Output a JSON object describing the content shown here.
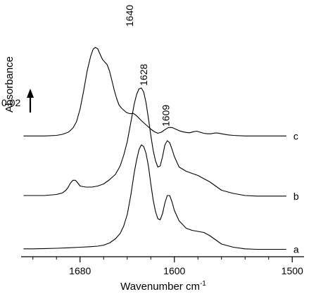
{
  "chart_data": {
    "type": "line",
    "title": "",
    "xlabel": "Wavenumber cm",
    "xlabel_superscript": "-1",
    "ylabel": "Absorbance",
    "xlim": [
      1730,
      1490
    ],
    "x_reversed": true,
    "x_ticks": [
      {
        "value": 1680,
        "label": "1680"
      },
      {
        "value": 1600,
        "label": "1600"
      },
      {
        "value": 1500,
        "label": "1500"
      }
    ],
    "x_minor_ticks": [
      1720,
      1700,
      1660,
      1640,
      1620,
      1580,
      1560,
      1540,
      1520
    ],
    "ylim": [
      0,
      0.24
    ],
    "y_axis_shown": false,
    "grid": false,
    "scale_bar": {
      "label": "0.02",
      "value": 0.02,
      "direction": "up"
    },
    "peak_labels": [
      {
        "x": 1640,
        "label": "1640"
      },
      {
        "x": 1628,
        "label": "1628"
      },
      {
        "x": 1609,
        "label": "1609"
      }
    ],
    "series": [
      {
        "name": "a",
        "points": [
          [
            1728,
            0.0075
          ],
          [
            1720,
            0.0075
          ],
          [
            1710,
            0.0077
          ],
          [
            1700,
            0.008
          ],
          [
            1690,
            0.0085
          ],
          [
            1680,
            0.009
          ],
          [
            1672,
            0.0095
          ],
          [
            1665,
            0.01
          ],
          [
            1660,
            0.011
          ],
          [
            1655,
            0.013
          ],
          [
            1650,
            0.017
          ],
          [
            1646,
            0.022
          ],
          [
            1643,
            0.029
          ],
          [
            1640,
            0.04
          ],
          [
            1637,
            0.058
          ],
          [
            1634,
            0.08
          ],
          [
            1632,
            0.092
          ],
          [
            1630,
            0.1015
          ],
          [
            1628,
            0.106
          ],
          [
            1626,
            0.1045
          ],
          [
            1624,
            0.098
          ],
          [
            1622,
            0.086
          ],
          [
            1620,
            0.069
          ],
          [
            1618,
            0.054
          ],
          [
            1616,
            0.043
          ],
          [
            1614,
            0.036
          ],
          [
            1612,
            0.035
          ],
          [
            1610,
            0.041
          ],
          [
            1608,
            0.051
          ],
          [
            1606,
            0.058
          ],
          [
            1604,
            0.058
          ],
          [
            1602,
            0.052
          ],
          [
            1600,
            0.044
          ],
          [
            1596,
            0.034
          ],
          [
            1590,
            0.027
          ],
          [
            1585,
            0.025
          ],
          [
            1580,
            0.024
          ],
          [
            1575,
            0.023
          ],
          [
            1570,
            0.02
          ],
          [
            1565,
            0.016
          ],
          [
            1560,
            0.012
          ],
          [
            1550,
            0.009
          ],
          [
            1540,
            0.0075
          ],
          [
            1530,
            0.007
          ],
          [
            1520,
            0.007
          ],
          [
            1510,
            0.007
          ],
          [
            1505,
            0.007
          ]
        ]
      },
      {
        "name": "b",
        "points": [
          [
            1728,
            0.058
          ],
          [
            1720,
            0.058
          ],
          [
            1710,
            0.058
          ],
          [
            1700,
            0.059
          ],
          [
            1695,
            0.0605
          ],
          [
            1692,
            0.063
          ],
          [
            1690,
            0.066
          ],
          [
            1688,
            0.07
          ],
          [
            1686,
            0.0725
          ],
          [
            1684,
            0.0725
          ],
          [
            1682,
            0.07
          ],
          [
            1680,
            0.067
          ],
          [
            1675,
            0.066
          ],
          [
            1670,
            0.066
          ],
          [
            1665,
            0.067
          ],
          [
            1660,
            0.069
          ],
          [
            1655,
            0.073
          ],
          [
            1650,
            0.078
          ],
          [
            1646,
            0.086
          ],
          [
            1643,
            0.096
          ],
          [
            1640,
            0.109
          ],
          [
            1637,
            0.127
          ],
          [
            1634,
            0.145
          ],
          [
            1632,
            0.154
          ],
          [
            1630,
            0.159
          ],
          [
            1628,
            0.16
          ],
          [
            1626,
            0.156
          ],
          [
            1624,
            0.146
          ],
          [
            1622,
            0.131
          ],
          [
            1620,
            0.115
          ],
          [
            1618,
            0.101
          ],
          [
            1616,
            0.091
          ],
          [
            1614,
            0.085
          ],
          [
            1612,
            0.086
          ],
          [
            1610,
            0.095
          ],
          [
            1608,
            0.106
          ],
          [
            1606,
            0.11
          ],
          [
            1604,
            0.108
          ],
          [
            1602,
            0.102
          ],
          [
            1600,
            0.095
          ],
          [
            1596,
            0.085
          ],
          [
            1590,
            0.081
          ],
          [
            1585,
            0.079
          ],
          [
            1580,
            0.077
          ],
          [
            1575,
            0.074
          ],
          [
            1570,
            0.071
          ],
          [
            1565,
            0.067
          ],
          [
            1560,
            0.063
          ],
          [
            1550,
            0.06
          ],
          [
            1540,
            0.058
          ],
          [
            1530,
            0.0575
          ],
          [
            1520,
            0.0575
          ],
          [
            1510,
            0.0575
          ],
          [
            1505,
            0.0575
          ]
        ]
      },
      {
        "name": "c",
        "points": [
          [
            1728,
            0.1145
          ],
          [
            1720,
            0.1145
          ],
          [
            1710,
            0.1145
          ],
          [
            1700,
            0.115
          ],
          [
            1695,
            0.116
          ],
          [
            1690,
            0.118
          ],
          [
            1686,
            0.122
          ],
          [
            1683,
            0.128
          ],
          [
            1680,
            0.14
          ],
          [
            1677,
            0.157
          ],
          [
            1674,
            0.176
          ],
          [
            1671,
            0.19
          ],
          [
            1669,
            0.1965
          ],
          [
            1667,
            0.1985
          ],
          [
            1665,
            0.197
          ],
          [
            1663,
            0.192
          ],
          [
            1661,
            0.187
          ],
          [
            1659,
            0.1845
          ],
          [
            1657,
            0.182
          ],
          [
            1655,
            0.176
          ],
          [
            1653,
            0.167
          ],
          [
            1651,
            0.158
          ],
          [
            1649,
            0.15
          ],
          [
            1647,
            0.144
          ],
          [
            1645,
            0.141
          ],
          [
            1643,
            0.139
          ],
          [
            1641,
            0.137
          ],
          [
            1639,
            0.136
          ],
          [
            1637,
            0.1355
          ],
          [
            1635,
            0.136
          ],
          [
            1633,
            0.1345
          ],
          [
            1631,
            0.1325
          ],
          [
            1629,
            0.13
          ],
          [
            1626,
            0.127
          ],
          [
            1623,
            0.124
          ],
          [
            1620,
            0.121
          ],
          [
            1617,
            0.1185
          ],
          [
            1614,
            0.117
          ],
          [
            1611,
            0.118
          ],
          [
            1608,
            0.1205
          ],
          [
            1605,
            0.1225
          ],
          [
            1602,
            0.1225
          ],
          [
            1599,
            0.121
          ],
          [
            1596,
            0.1195
          ],
          [
            1593,
            0.1185
          ],
          [
            1590,
            0.1178
          ],
          [
            1587,
            0.1175
          ],
          [
            1584,
            0.1185
          ],
          [
            1581,
            0.119
          ],
          [
            1578,
            0.118
          ],
          [
            1575,
            0.117
          ],
          [
            1572,
            0.1165
          ],
          [
            1569,
            0.1165
          ],
          [
            1566,
            0.1172
          ],
          [
            1563,
            0.1172
          ],
          [
            1560,
            0.1165
          ],
          [
            1555,
            0.1155
          ],
          [
            1550,
            0.115
          ],
          [
            1540,
            0.1145
          ],
          [
            1530,
            0.1145
          ],
          [
            1520,
            0.1145
          ],
          [
            1510,
            0.1145
          ],
          [
            1505,
            0.1145
          ]
        ]
      }
    ]
  }
}
